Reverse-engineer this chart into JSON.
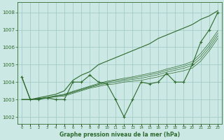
{
  "x": [
    0,
    1,
    2,
    3,
    4,
    5,
    6,
    7,
    8,
    9,
    10,
    11,
    12,
    13,
    14,
    15,
    16,
    17,
    18,
    19,
    20,
    21,
    22,
    23
  ],
  "line_upper": [
    1004.3,
    1003.0,
    1003.1,
    1003.2,
    1003.3,
    1003.5,
    1004.1,
    1004.4,
    1004.6,
    1005.0,
    1005.2,
    1005.4,
    1005.6,
    1005.8,
    1006.0,
    1006.2,
    1006.5,
    1006.7,
    1006.9,
    1007.1,
    1007.3,
    1007.6,
    1007.8,
    1008.1
  ],
  "line_main": [
    1004.3,
    1003.0,
    1003.0,
    1003.1,
    1003.0,
    1003.0,
    1004.0,
    1004.0,
    1004.4,
    1004.0,
    1003.9,
    1003.0,
    1002.0,
    1003.0,
    1004.0,
    1003.9,
    1004.0,
    1004.5,
    1004.0,
    1004.0,
    1005.0,
    1006.3,
    1007.0,
    1008.0
  ],
  "line_avg1": [
    1003.0,
    1003.0,
    1003.05,
    1003.1,
    1003.15,
    1003.2,
    1003.35,
    1003.5,
    1003.65,
    1003.75,
    1003.85,
    1003.9,
    1004.0,
    1004.05,
    1004.1,
    1004.2,
    1004.3,
    1004.45,
    1004.55,
    1004.65,
    1004.8,
    1005.2,
    1005.8,
    1006.5
  ],
  "line_avg2": [
    1003.0,
    1003.0,
    1003.05,
    1003.1,
    1003.18,
    1003.25,
    1003.4,
    1003.55,
    1003.7,
    1003.82,
    1003.93,
    1004.0,
    1004.08,
    1004.15,
    1004.22,
    1004.32,
    1004.42,
    1004.57,
    1004.68,
    1004.79,
    1004.95,
    1005.35,
    1005.95,
    1006.65
  ],
  "line_avg3": [
    1003.0,
    1003.0,
    1003.05,
    1003.1,
    1003.2,
    1003.28,
    1003.43,
    1003.58,
    1003.73,
    1003.87,
    1004.0,
    1004.08,
    1004.15,
    1004.23,
    1004.32,
    1004.42,
    1004.52,
    1004.67,
    1004.78,
    1004.9,
    1005.07,
    1005.5,
    1006.1,
    1006.8
  ],
  "line_avg4": [
    1003.0,
    1003.0,
    1003.05,
    1003.12,
    1003.22,
    1003.3,
    1003.47,
    1003.62,
    1003.77,
    1003.92,
    1004.05,
    1004.13,
    1004.22,
    1004.3,
    1004.4,
    1004.5,
    1004.6,
    1004.75,
    1004.87,
    1005.0,
    1005.18,
    1005.65,
    1006.25,
    1006.95
  ],
  "line_color": "#2d6a2d",
  "bg_color": "#cce8e4",
  "grid_color": "#9ec8c4",
  "xlabel": "Graphe pression niveau de la mer (hPa)",
  "yticks": [
    1002,
    1003,
    1004,
    1005,
    1006,
    1007,
    1008
  ],
  "xticks": [
    0,
    1,
    2,
    3,
    4,
    5,
    6,
    7,
    8,
    9,
    10,
    11,
    12,
    13,
    14,
    15,
    16,
    17,
    18,
    19,
    20,
    21,
    22,
    23
  ],
  "ylim": [
    1001.6,
    1008.6
  ],
  "xlim": [
    -0.5,
    23.5
  ]
}
